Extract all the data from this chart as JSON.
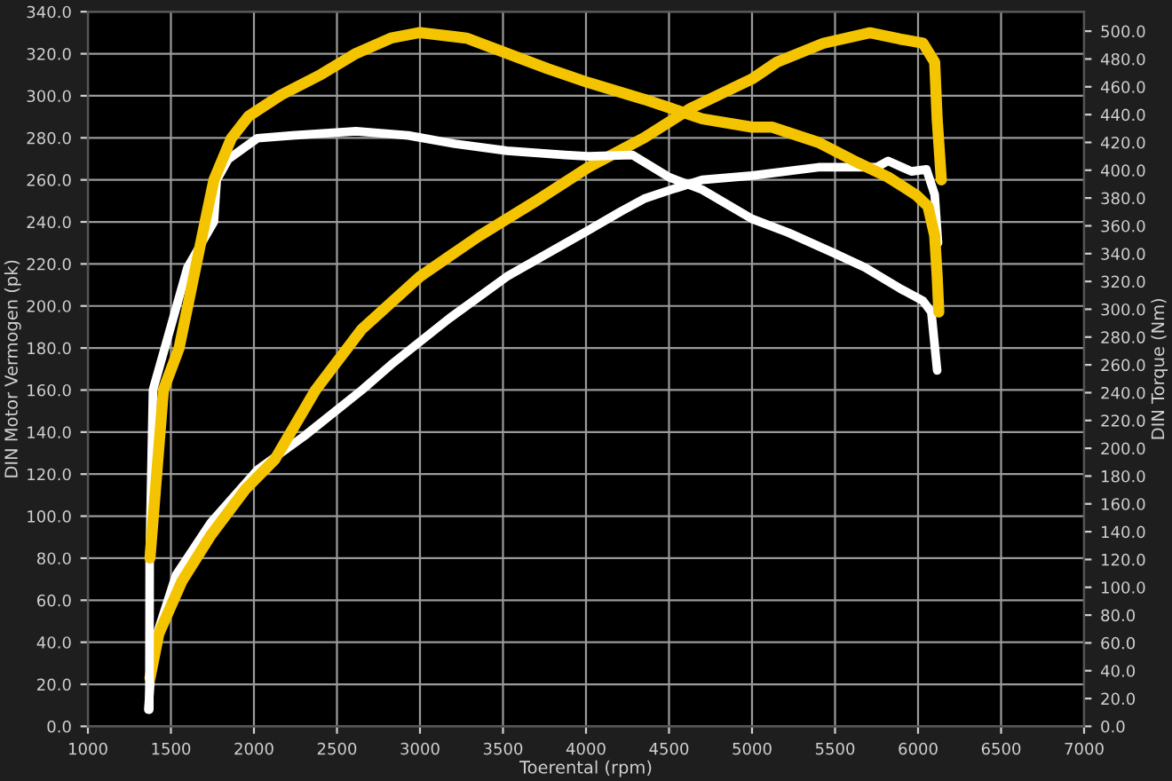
{
  "chart_data": {
    "type": "line",
    "xlabel": "Toerental (rpm)",
    "ylabel": "DIN Motor Vermogen (pk)",
    "y2label": "DIN Torque (Nm)",
    "xlim": [
      1000,
      7000
    ],
    "xticks": [
      1000,
      1500,
      2000,
      2500,
      3000,
      3500,
      4000,
      4500,
      5000,
      5500,
      6000,
      6500,
      7000
    ],
    "ylim": [
      0,
      340
    ],
    "yticks": [
      {
        "value": 0,
        "label": "0.0"
      },
      {
        "value": 20,
        "label": "20.0"
      },
      {
        "value": 40,
        "label": "40.0"
      },
      {
        "value": 60,
        "label": "60.0"
      },
      {
        "value": 80,
        "label": "80.0"
      },
      {
        "value": 100,
        "label": "100.0"
      },
      {
        "value": 120,
        "label": "120.0"
      },
      {
        "value": 140,
        "label": "140.0"
      },
      {
        "value": 160,
        "label": "160.0"
      },
      {
        "value": 180,
        "label": "180.0"
      },
      {
        "value": 200,
        "label": "200.0"
      },
      {
        "value": 220,
        "label": "220.0"
      },
      {
        "value": 240,
        "label": "240.0"
      },
      {
        "value": 260,
        "label": "260.0"
      },
      {
        "value": 280,
        "label": "280.0"
      },
      {
        "value": 300,
        "label": "300.0"
      },
      {
        "value": 320,
        "label": "320.0"
      },
      {
        "value": 340,
        "label": "340.0"
      }
    ],
    "y2lim": [
      0,
      514
    ],
    "y2ticks": [
      {
        "value": 0,
        "label": "0.0"
      },
      {
        "value": 20,
        "label": "20.0"
      },
      {
        "value": 40,
        "label": "40.0"
      },
      {
        "value": 60,
        "label": "60.0"
      },
      {
        "value": 80,
        "label": "80.0"
      },
      {
        "value": 100,
        "label": "100.0"
      },
      {
        "value": 120,
        "label": "120.0"
      },
      {
        "value": 140,
        "label": "140.0"
      },
      {
        "value": 160,
        "label": "160.0"
      },
      {
        "value": 180,
        "label": "180.0"
      },
      {
        "value": 200,
        "label": "200.0"
      },
      {
        "value": 220,
        "label": "220.0"
      },
      {
        "value": 240,
        "label": "240.0"
      },
      {
        "value": 260,
        "label": "260.0"
      },
      {
        "value": 280,
        "label": "280.0"
      },
      {
        "value": 300,
        "label": "300.0"
      },
      {
        "value": 320,
        "label": "320.0"
      },
      {
        "value": 340,
        "label": "340.0"
      },
      {
        "value": 360,
        "label": "360.0"
      },
      {
        "value": 380,
        "label": "380.0"
      },
      {
        "value": 400,
        "label": "400.0"
      },
      {
        "value": 420,
        "label": "420.0"
      },
      {
        "value": 440,
        "label": "440.0"
      },
      {
        "value": 460,
        "label": "460.0"
      },
      {
        "value": 480,
        "label": "480.0"
      },
      {
        "value": 500,
        "label": "500.0"
      }
    ],
    "grid": true,
    "series": [
      {
        "color": "#ffffff",
        "axis": "y2",
        "x": [
          1370,
          1372,
          1392,
          1600,
          1759,
          1776,
          1846,
          2021,
          2231,
          2615,
          2930,
          3210,
          3524,
          3874,
          4014,
          4280,
          4500,
          4700,
          5000,
          5220,
          5500,
          5680,
          5890,
          6030,
          6080,
          6115
        ],
        "values": [
          12,
          121,
          242,
          330,
          363,
          393,
          408,
          423,
          425,
          428,
          425,
          419,
          414,
          411,
          410,
          411,
          395,
          386,
          365,
          355,
          340,
          330,
          315,
          306,
          298,
          256
        ]
      },
      {
        "color": "#ffffff",
        "x": [
          1364,
          1392,
          1531,
          1741,
          2021,
          2301,
          2650,
          2825,
          3175,
          3524,
          4014,
          4210,
          4350,
          4500,
          4700,
          5000,
          5400,
          5750,
          5820,
          5960,
          6050,
          6100,
          6120
        ],
        "values": [
          8,
          38,
          72,
          97,
          122,
          138,
          160,
          172,
          194,
          214,
          236,
          245,
          251,
          255,
          260,
          262,
          266,
          266,
          269,
          264,
          265,
          253,
          230
        ]
      },
      {
        "color": "#f5c400",
        "axis": "y2",
        "x": [
          1374,
          1455,
          1549,
          1601,
          1654,
          1706,
          1759,
          1864,
          1969,
          2161,
          2406,
          2615,
          2825,
          3000,
          3280,
          3524,
          3769,
          4014,
          4350,
          4500,
          4700,
          5000,
          5120,
          5400,
          5610,
          5820,
          5990,
          6060,
          6100,
          6115,
          6125
        ],
        "values": [
          121,
          242,
          272,
          302,
          333,
          363,
          393,
          423,
          439,
          454,
          469,
          484,
          495,
          499,
          495,
          484,
          473,
          463,
          451,
          445,
          437,
          431,
          431,
          420,
          407,
          395,
          382,
          374,
          353,
          324,
          298
        ]
      },
      {
        "color": "#f5c400",
        "x": [
          1374,
          1427,
          1566,
          1741,
          1951,
          2126,
          2371,
          2650,
          3000,
          3350,
          3700,
          4014,
          4350,
          4630,
          5000,
          5150,
          5430,
          5710,
          5890,
          6030,
          6100,
          6115,
          6140
        ],
        "values": [
          23,
          44,
          69,
          91,
          113,
          127,
          160,
          189,
          214,
          233,
          250,
          266,
          280,
          294,
          308,
          316,
          325,
          330,
          327,
          325,
          316,
          289,
          260
        ]
      }
    ]
  }
}
